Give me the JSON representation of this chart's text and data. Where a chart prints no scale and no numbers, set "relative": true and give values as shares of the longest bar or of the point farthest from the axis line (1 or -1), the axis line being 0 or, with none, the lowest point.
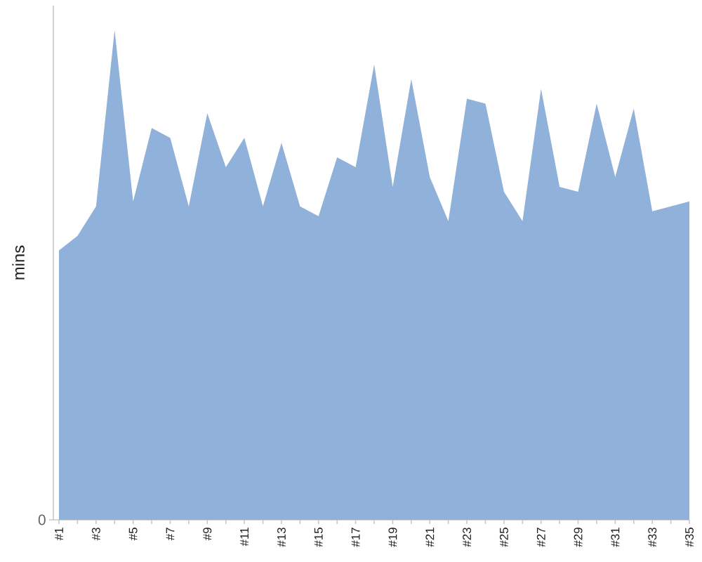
{
  "chart_data": {
    "type": "area",
    "ylabel": "mins",
    "relative": true,
    "color": "#8fb1da",
    "categories": [
      "#1",
      null,
      "#3",
      null,
      "#5",
      null,
      "#7",
      null,
      "#9",
      null,
      "#11",
      null,
      "#13",
      null,
      "#15",
      null,
      "#17",
      null,
      "#19",
      null,
      "#21",
      null,
      "#23",
      null,
      "#25",
      null,
      "#27",
      null,
      "#29",
      null,
      "#31",
      null,
      "#33",
      null,
      "#35"
    ],
    "values": [
      0.55,
      0.58,
      0.64,
      1,
      0.65,
      0.8,
      0.78,
      0.64,
      0.83,
      0.72,
      0.78,
      0.64,
      0.77,
      0.64,
      0.62,
      0.74,
      0.72,
      0.93,
      0.68,
      0.9,
      0.7,
      0.61,
      0.86,
      0.85,
      0.67,
      0.61,
      0.88,
      0.68,
      0.67,
      0.85,
      0.7,
      0.84,
      0.63,
      0.64,
      0.65
    ],
    "annotations": [
      "0"
    ]
  }
}
